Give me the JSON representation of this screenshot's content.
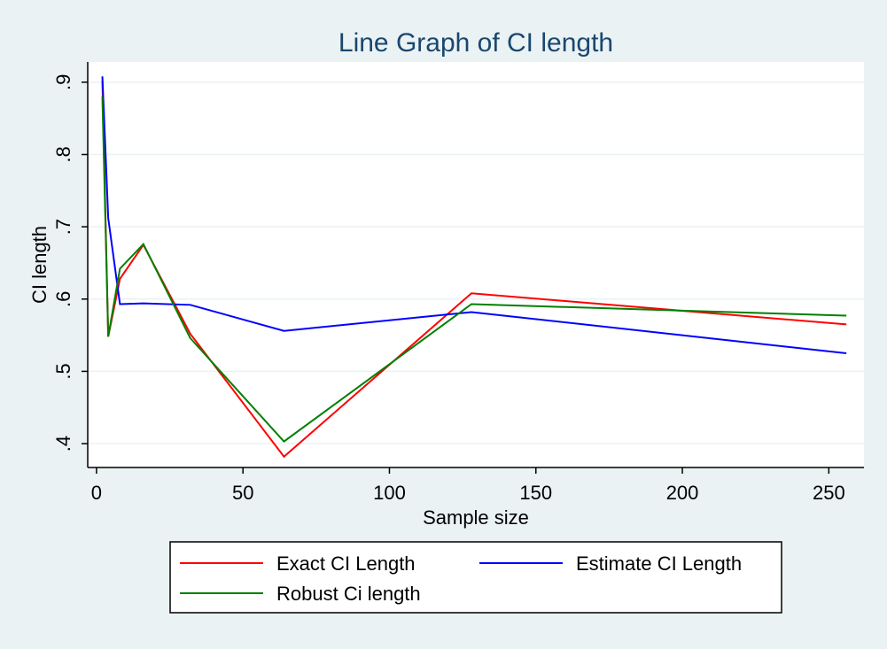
{
  "chart_data": {
    "type": "line",
    "title": "Line Graph of CI length",
    "xlabel": "Sample size",
    "ylabel": "CI length",
    "xlim": [
      -3,
      262
    ],
    "ylim": [
      0.367,
      0.928
    ],
    "xticks": [
      0,
      50,
      100,
      150,
      200,
      250
    ],
    "xtick_labels": [
      "0",
      "50",
      "100",
      "150",
      "200",
      "250"
    ],
    "yticks": [
      0.4,
      0.5,
      0.6,
      0.7,
      0.8,
      0.9
    ],
    "ytick_labels": [
      ".4",
      ".5",
      ".6",
      ".7",
      ".8",
      ".9"
    ],
    "grid": "horizontal",
    "legend_position": "bottom",
    "x": [
      2,
      4,
      8,
      16,
      32,
      64,
      128,
      256
    ],
    "series": [
      {
        "name": "Exact CI Length",
        "color": "#ff0000",
        "values": [
          0.902,
          0.548,
          0.628,
          0.675,
          0.552,
          0.382,
          0.608,
          0.565
        ]
      },
      {
        "name": "Estimate CI Length",
        "color": "#0000ff",
        "values": [
          0.908,
          0.712,
          0.593,
          0.594,
          0.592,
          0.556,
          0.582,
          0.525
        ]
      },
      {
        "name": "Robust Ci length",
        "color": "#008000",
        "values": [
          0.88,
          0.548,
          0.642,
          0.676,
          0.546,
          0.403,
          0.593,
          0.577
        ]
      }
    ]
  },
  "colors": {
    "background": "#eaf2f3",
    "plot_background": "#ffffff",
    "grid": "#eaf2f3",
    "title": "#1a476f"
  }
}
